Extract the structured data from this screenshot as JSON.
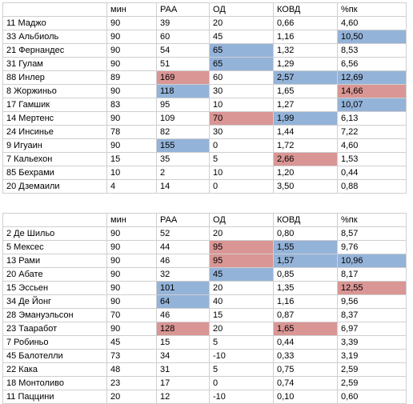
{
  "colors": {
    "blue": "#94b3d9",
    "red": "#d99694",
    "grid": "#cfcfcf"
  },
  "tables": [
    {
      "headers": [
        "",
        "мин",
        "РАА",
        "ОД",
        "КОВД",
        "%пк"
      ],
      "rows": [
        [
          "11 Маджо",
          "90",
          "39",
          "20",
          "0,66",
          "4,60"
        ],
        [
          "33 Альбиоль",
          "90",
          "60",
          "45",
          "1,16",
          "10,50"
        ],
        [
          "21 Фернандес",
          "90",
          "54",
          "65",
          "1,32",
          "8,53"
        ],
        [
          "31 Гулам",
          "90",
          "51",
          "65",
          "1,29",
          "6,56"
        ],
        [
          "88 Инлер",
          "89",
          "169",
          "60",
          "2,57",
          "12,69"
        ],
        [
          "8 Жоржиньо",
          "90",
          "118",
          "30",
          "1,65",
          "14,66"
        ],
        [
          "17 Гамшик",
          "83",
          "95",
          "10",
          "1,27",
          "10,07"
        ],
        [
          "14 Мертенс",
          "90",
          "109",
          "70",
          "1,99",
          "6,13"
        ],
        [
          "24 Инсинье",
          "78",
          "82",
          "30",
          "1,44",
          "7,22"
        ],
        [
          "9 Игуаин",
          "90",
          "155",
          "0",
          "1,72",
          "4,60"
        ],
        [
          "7 Кальехон",
          "15",
          "35",
          "5",
          "2,66",
          "1,53"
        ],
        [
          "85 Бехрами",
          "10",
          "2",
          "10",
          "1,20",
          "0,44"
        ],
        [
          "20 Дземаили",
          "4",
          "14",
          "0",
          "3,50",
          "0,88"
        ]
      ],
      "highlights": [
        [
          0,
          0,
          0,
          0,
          0,
          0
        ],
        [
          0,
          0,
          0,
          0,
          0,
          "blue"
        ],
        [
          0,
          0,
          0,
          "blue",
          0,
          0
        ],
        [
          0,
          0,
          0,
          "blue",
          0,
          0
        ],
        [
          0,
          0,
          "red",
          0,
          "blue",
          "blue"
        ],
        [
          0,
          0,
          "blue",
          0,
          0,
          "red"
        ],
        [
          0,
          0,
          0,
          0,
          0,
          "blue"
        ],
        [
          0,
          0,
          0,
          "red",
          "blue",
          0
        ],
        [
          0,
          0,
          0,
          0,
          0,
          0
        ],
        [
          0,
          0,
          "blue",
          0,
          0,
          0
        ],
        [
          0,
          0,
          0,
          0,
          "red",
          0
        ],
        [
          0,
          0,
          0,
          0,
          0,
          0
        ],
        [
          0,
          0,
          0,
          0,
          0,
          0
        ]
      ]
    },
    {
      "headers": [
        "",
        "мин",
        "РАА",
        "ОД",
        "КОВД",
        "%пк"
      ],
      "rows": [
        [
          "2 Де Шильо",
          "90",
          "52",
          "20",
          "0,80",
          "8,57"
        ],
        [
          "5 Мексес",
          "90",
          "44",
          "95",
          "1,55",
          "9,76"
        ],
        [
          "13 Рами",
          "90",
          "46",
          "95",
          "1,57",
          "10,96"
        ],
        [
          "20 Абате",
          "90",
          "32",
          "45",
          "0,85",
          "8,17"
        ],
        [
          "15 Эссьен",
          "90",
          "101",
          "20",
          "1,35",
          "12,55"
        ],
        [
          "34 Де Йонг",
          "90",
          "64",
          "40",
          "1,16",
          "9,56"
        ],
        [
          "28 Эмануэльсон",
          "70",
          "46",
          "15",
          "0,87",
          "8,37"
        ],
        [
          "23 Тааработ",
          "90",
          "128",
          "20",
          "1,65",
          "6,97"
        ],
        [
          "7 Робиньо",
          "45",
          "15",
          "5",
          "0,44",
          "3,39"
        ],
        [
          "45 Балотелли",
          "73",
          "34",
          "-10",
          "0,33",
          "3,19"
        ],
        [
          "22 Кака",
          "48",
          "31",
          "5",
          "0,75",
          "2,59"
        ],
        [
          "18 Монтоливо",
          "23",
          "17",
          "0",
          "0,74",
          "2,59"
        ],
        [
          "11 Паццини",
          "20",
          "12",
          "-10",
          "0,10",
          "0,60"
        ]
      ],
      "highlights": [
        [
          0,
          0,
          0,
          0,
          0,
          0
        ],
        [
          0,
          0,
          0,
          "red",
          "blue",
          0
        ],
        [
          0,
          0,
          0,
          "red",
          "blue",
          "blue"
        ],
        [
          0,
          0,
          0,
          "blue",
          0,
          0
        ],
        [
          0,
          0,
          "blue",
          0,
          0,
          "red"
        ],
        [
          0,
          0,
          "blue",
          0,
          0,
          0
        ],
        [
          0,
          0,
          0,
          0,
          0,
          0
        ],
        [
          0,
          0,
          "red",
          0,
          "red",
          0
        ],
        [
          0,
          0,
          0,
          0,
          0,
          0
        ],
        [
          0,
          0,
          0,
          0,
          0,
          0
        ],
        [
          0,
          0,
          0,
          0,
          0,
          0
        ],
        [
          0,
          0,
          0,
          0,
          0,
          0
        ],
        [
          0,
          0,
          0,
          0,
          0,
          0
        ]
      ]
    }
  ]
}
